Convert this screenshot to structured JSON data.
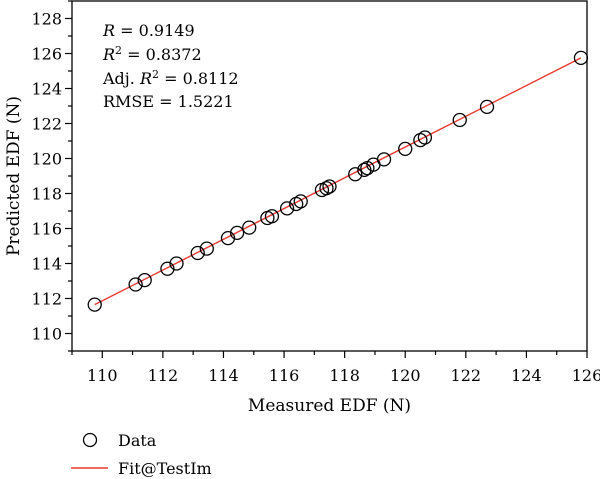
{
  "chart_data": {
    "type": "scatter",
    "xlabel": "Measured EDF (N)",
    "ylabel": "Predicted EDF (N)",
    "xlim": [
      109,
      126
    ],
    "ylim": [
      109,
      129
    ],
    "x_ticks": [
      "110",
      "112",
      "114",
      "116",
      "118",
      "120",
      "122",
      "124",
      "126"
    ],
    "y_ticks": [
      "110",
      "112",
      "114",
      "116",
      "118",
      "120",
      "122",
      "124",
      "126",
      "128"
    ],
    "grid": false,
    "legend_position": "bottom-left, below plot",
    "stats": {
      "r": "= 0.9149",
      "r2": "= 0.8372",
      "adj_prefix": "Adj.",
      "adj_r2": "= 0.8112",
      "rmse": "RMSE = 1.5221"
    },
    "series": [
      {
        "name": "Data",
        "marker": "open-circle",
        "color": "#000000",
        "x": [
          109.75,
          111.1,
          111.4,
          112.15,
          112.45,
          113.15,
          113.45,
          114.15,
          114.45,
          114.85,
          115.45,
          115.6,
          116.1,
          116.4,
          116.55,
          117.25,
          117.4,
          117.5,
          118.35,
          118.65,
          118.75,
          118.95,
          119.3,
          120.0,
          120.5,
          120.65,
          121.8,
          122.7,
          125.8
        ],
        "y": [
          111.65,
          112.8,
          113.05,
          113.7,
          114.0,
          114.6,
          114.85,
          115.45,
          115.75,
          116.05,
          116.6,
          116.7,
          117.15,
          117.4,
          117.55,
          118.2,
          118.3,
          118.4,
          119.1,
          119.35,
          119.45,
          119.65,
          119.95,
          120.55,
          121.05,
          121.2,
          122.2,
          122.95,
          125.75
        ]
      },
      {
        "name": "Fit@TestIm",
        "type": "line",
        "color": "#e8382f",
        "x": [
          109.75,
          125.8
        ],
        "y": [
          111.65,
          125.75
        ]
      }
    ]
  }
}
